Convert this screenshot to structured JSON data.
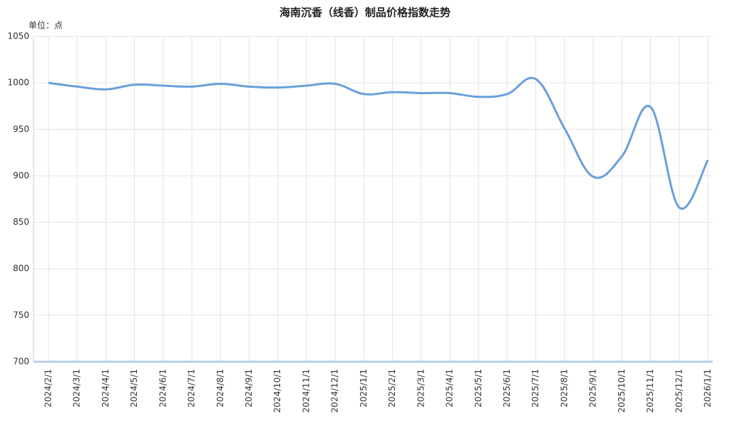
{
  "chart_data": {
    "type": "line",
    "title": "海南沉香（线香）制品价格指数走势",
    "unit_label": "单位：点",
    "categories": [
      "2024/2/1",
      "2024/3/1",
      "2024/4/1",
      "2024/5/1",
      "2024/6/1",
      "2024/7/1",
      "2024/8/1",
      "2024/9/1",
      "2024/10/1",
      "2024/11/1",
      "2024/12/1",
      "2025/1/1",
      "2025/2/1",
      "2025/3/1",
      "2025/4/1",
      "2025/5/1",
      "2025/6/1",
      "2025/7/1",
      "2025/8/1",
      "2025/9/1",
      "2025/10/1",
      "2025/11/1",
      "2025/12/1",
      "2026/1/1"
    ],
    "series": [
      {
        "color": "#6a9fdb",
        "values": [
          1000,
          996,
          993,
          998,
          997,
          996,
          999,
          996,
          995,
          997,
          999,
          988,
          990,
          989,
          989,
          985,
          988,
          1004,
          951,
          899,
          921,
          974,
          866,
          917
        ]
      }
    ],
    "ylim": [
      700,
      1050
    ],
    "yticks": [
      700,
      750,
      800,
      850,
      900,
      950,
      1000,
      1050
    ],
    "grid": true
  }
}
